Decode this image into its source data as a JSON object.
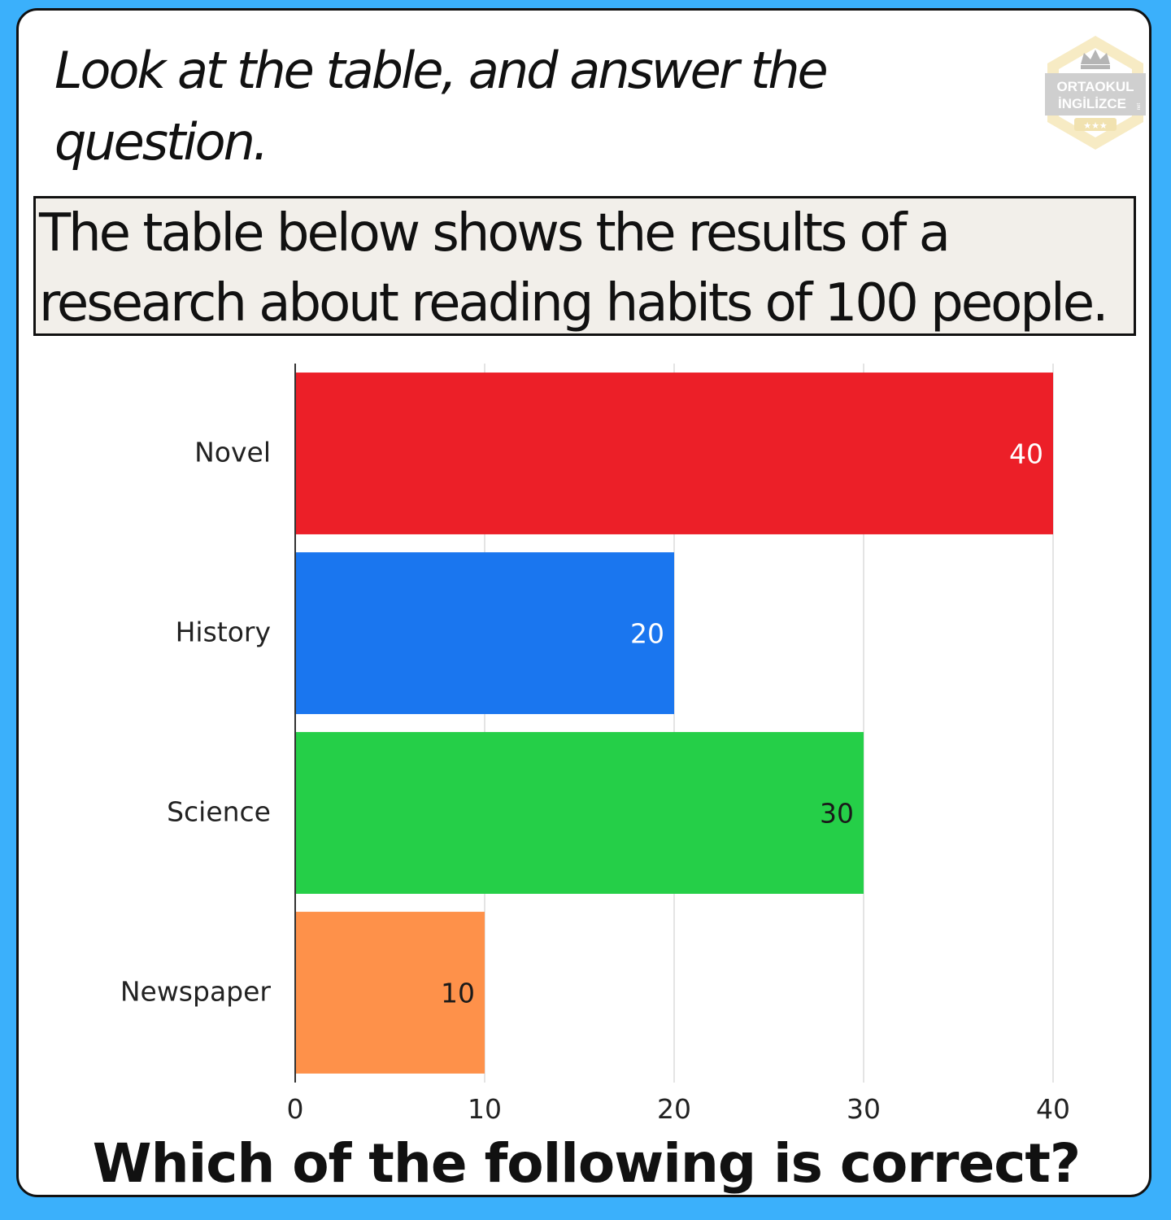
{
  "instruction": {
    "line1": "Look at the table, and answer the",
    "line2": "question."
  },
  "logo": {
    "line1": "ORTAOKUL",
    "line2": "İNGİLİZCE",
    "small": "net",
    "colors": {
      "hexagon": "#f7ebc4",
      "band": "#cfcfcf",
      "text": "#b5b5b5",
      "stars": "#f1e2b0"
    },
    "icon": "crown-icon"
  },
  "intro": {
    "line1": "The table below shows the results of a",
    "line2": "research about reading habits of 100 people."
  },
  "chart_data": {
    "type": "bar",
    "orientation": "horizontal",
    "categories": [
      "Novel",
      "History",
      "Science",
      "Newspaper"
    ],
    "values": [
      40,
      20,
      30,
      10
    ],
    "colors": [
      "#ec1f28",
      "#1a76ef",
      "#25cf48",
      "#fe914a"
    ],
    "label_colors": [
      "#ffffff",
      "#ffffff",
      "#1a1a1a",
      "#1a1a1a"
    ],
    "xlim": [
      0,
      40
    ],
    "xticks": [
      0,
      10,
      20,
      30,
      40
    ],
    "grid": true,
    "legend": "none"
  },
  "question": "Which of the following is correct?"
}
